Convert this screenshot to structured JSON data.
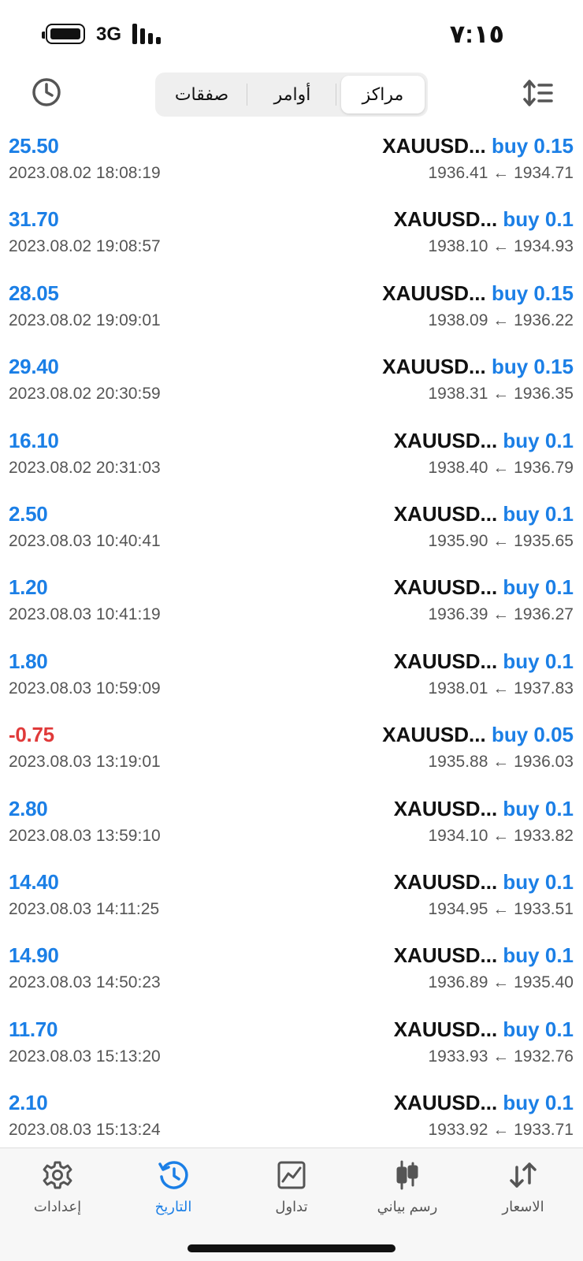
{
  "status_bar": {
    "time": "٧:١٥",
    "network": "3G"
  },
  "header": {
    "tabs": [
      {
        "label": "مراكز",
        "active": true
      },
      {
        "label": "أوامر",
        "active": false
      },
      {
        "label": "صفقات",
        "active": false
      }
    ]
  },
  "colors": {
    "profit_positive": "#1b7fe6",
    "profit_negative": "#e03a3a",
    "accent": "#1b7fe6"
  },
  "positions": [
    {
      "profit": "25.50",
      "time": "2023.08.02 18:08:19",
      "symbol": "XAUUSD...",
      "side_volume": "buy 0.15",
      "prices": "1936.41 ← 1934.71"
    },
    {
      "profit": "31.70",
      "time": "2023.08.02 19:08:57",
      "symbol": "XAUUSD...",
      "side_volume": "buy 0.1",
      "prices": "1938.10 ← 1934.93"
    },
    {
      "profit": "28.05",
      "time": "2023.08.02 19:09:01",
      "symbol": "XAUUSD...",
      "side_volume": "buy 0.15",
      "prices": "1938.09 ← 1936.22"
    },
    {
      "profit": "29.40",
      "time": "2023.08.02 20:30:59",
      "symbol": "XAUUSD...",
      "side_volume": "buy 0.15",
      "prices": "1938.31 ← 1936.35"
    },
    {
      "profit": "16.10",
      "time": "2023.08.02 20:31:03",
      "symbol": "XAUUSD...",
      "side_volume": "buy 0.1",
      "prices": "1938.40 ← 1936.79"
    },
    {
      "profit": "2.50",
      "time": "2023.08.03 10:40:41",
      "symbol": "XAUUSD...",
      "side_volume": "buy 0.1",
      "prices": "1935.90 ← 1935.65"
    },
    {
      "profit": "1.20",
      "time": "2023.08.03 10:41:19",
      "symbol": "XAUUSD...",
      "side_volume": "buy 0.1",
      "prices": "1936.39 ← 1936.27"
    },
    {
      "profit": "1.80",
      "time": "2023.08.03 10:59:09",
      "symbol": "XAUUSD...",
      "side_volume": "buy 0.1",
      "prices": "1938.01 ← 1937.83"
    },
    {
      "profit": "-0.75",
      "time": "2023.08.03 13:19:01",
      "symbol": "XAUUSD...",
      "side_volume": "buy 0.05",
      "prices": "1935.88 ← 1936.03"
    },
    {
      "profit": "2.80",
      "time": "2023.08.03 13:59:10",
      "symbol": "XAUUSD...",
      "side_volume": "buy 0.1",
      "prices": "1934.10 ← 1933.82"
    },
    {
      "profit": "14.40",
      "time": "2023.08.03 14:11:25",
      "symbol": "XAUUSD...",
      "side_volume": "buy 0.1",
      "prices": "1934.95 ← 1933.51"
    },
    {
      "profit": "14.90",
      "time": "2023.08.03 14:50:23",
      "symbol": "XAUUSD...",
      "side_volume": "buy 0.1",
      "prices": "1936.89 ← 1935.40"
    },
    {
      "profit": "11.70",
      "time": "2023.08.03 15:13:20",
      "symbol": "XAUUSD...",
      "side_volume": "buy 0.1",
      "prices": "1933.93 ← 1932.76"
    },
    {
      "profit": "2.10",
      "time": "2023.08.03 15:13:24",
      "symbol": "XAUUSD...",
      "side_volume": "buy 0.1",
      "prices": "1933.92 ← 1933.71"
    }
  ],
  "tabbar": {
    "items": [
      {
        "label": "إعدادات",
        "icon": "gear-icon",
        "active": false
      },
      {
        "label": "التاريخ",
        "icon": "history-icon",
        "active": true
      },
      {
        "label": "تداول",
        "icon": "trade-chart-icon",
        "active": false
      },
      {
        "label": "رسم بياني",
        "icon": "candlestick-icon",
        "active": false
      },
      {
        "label": "الاسعار",
        "icon": "quotes-arrows-icon",
        "active": false
      }
    ]
  }
}
